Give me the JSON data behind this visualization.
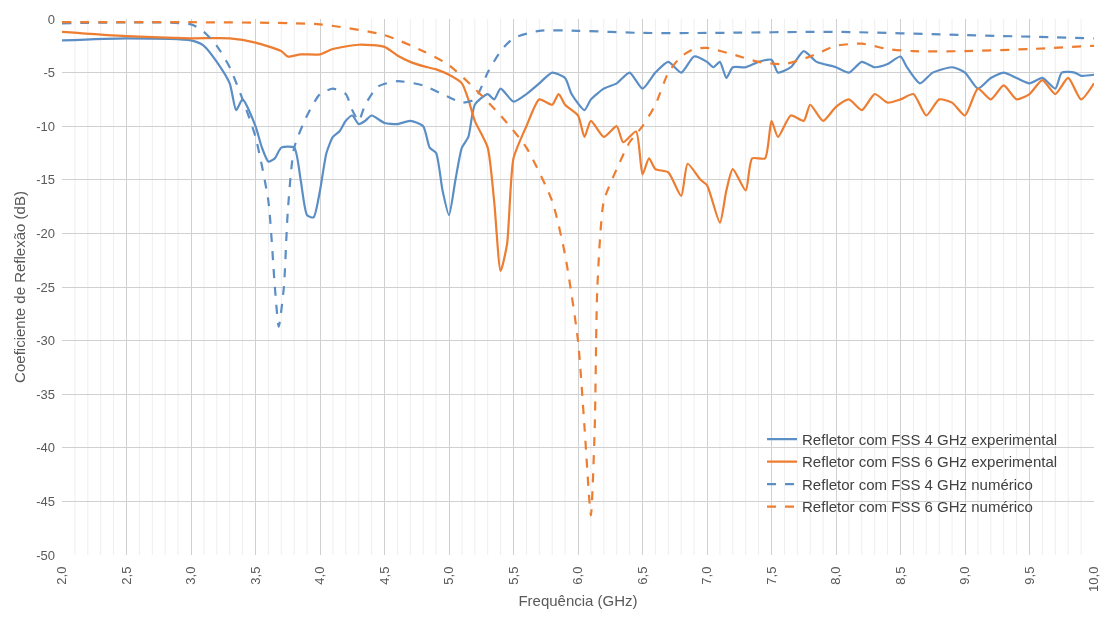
{
  "chart_data": {
    "type": "line",
    "xlabel": "Frequência (GHz)",
    "ylabel": "Coeficiente de Reflexão (dB)",
    "xlim": [
      2,
      10
    ],
    "ylim": [
      -50,
      0
    ],
    "xticks": [
      {
        "value": 2,
        "label": "2,0"
      },
      {
        "value": 2.5,
        "label": "2,5"
      },
      {
        "value": 3,
        "label": "3,0"
      },
      {
        "value": 3.5,
        "label": "3,5"
      },
      {
        "value": 4,
        "label": "4,0"
      },
      {
        "value": 4.5,
        "label": "4,5"
      },
      {
        "value": 5,
        "label": "5,0"
      },
      {
        "value": 5.5,
        "label": "5,5"
      },
      {
        "value": 6,
        "label": "6,0"
      },
      {
        "value": 6.5,
        "label": "6,5"
      },
      {
        "value": 7,
        "label": "7,0"
      },
      {
        "value": 7.5,
        "label": "7,5"
      },
      {
        "value": 8,
        "label": "8,0"
      },
      {
        "value": 8.5,
        "label": "8,5"
      },
      {
        "value": 9,
        "label": "9,0"
      },
      {
        "value": 9.5,
        "label": "9,5"
      },
      {
        "value": 10,
        "label": "10,0"
      }
    ],
    "yticks": [
      -50,
      -45,
      -40,
      -35,
      -30,
      -25,
      -20,
      -15,
      -10,
      -5,
      0
    ],
    "grid": true,
    "legend": "bottom right",
    "marker": "none",
    "series": [
      {
        "name": "Refletor com FSS 4 GHz experimental",
        "color": "#5b8ec4",
        "line_style": "solid",
        "x": [
          2.0,
          2.5,
          3.0,
          3.1,
          3.2,
          3.3,
          3.35,
          3.4,
          3.5,
          3.55,
          3.6,
          3.65,
          3.7,
          3.8,
          3.85,
          3.9,
          3.95,
          4.0,
          4.05,
          4.1,
          4.15,
          4.2,
          4.25,
          4.3,
          4.35,
          4.4,
          4.5,
          4.6,
          4.7,
          4.8,
          4.85,
          4.9,
          4.95,
          5.0,
          5.05,
          5.1,
          5.15,
          5.2,
          5.3,
          5.35,
          5.4,
          5.5,
          5.6,
          5.7,
          5.8,
          5.9,
          5.95,
          6.05,
          6.1,
          6.2,
          6.3,
          6.4,
          6.5,
          6.6,
          6.7,
          6.8,
          6.9,
          7.0,
          7.05,
          7.1,
          7.15,
          7.2,
          7.3,
          7.4,
          7.5,
          7.55,
          7.65,
          7.75,
          7.85,
          8.0,
          8.1,
          8.2,
          8.3,
          8.4,
          8.5,
          8.55,
          8.65,
          8.75,
          8.9,
          9.0,
          9.1,
          9.2,
          9.3,
          9.4,
          9.5,
          9.6,
          9.7,
          9.75,
          9.85,
          9.9,
          10.0
        ],
        "values": [
          -2,
          -1.8,
          -2,
          -2.5,
          -4,
          -6,
          -8.5,
          -7.5,
          -10,
          -12,
          -13.3,
          -13,
          -12,
          -12,
          -15,
          -18.3,
          -18.5,
          -16,
          -12.5,
          -11,
          -10.5,
          -9.5,
          -9,
          -9.8,
          -9.5,
          -9,
          -9.7,
          -9.8,
          -9.5,
          -10,
          -12,
          -12.5,
          -16,
          -18.3,
          -15,
          -12,
          -11,
          -8,
          -7,
          -7.5,
          -6.5,
          -7.7,
          -7,
          -6,
          -5,
          -5.5,
          -7,
          -8.5,
          -7.5,
          -6.5,
          -6,
          -5,
          -6.5,
          -5,
          -4,
          -5,
          -3.5,
          -4,
          -4.5,
          -4,
          -5.5,
          -4.5,
          -4.5,
          -4,
          -3.8,
          -5,
          -4.5,
          -3,
          -4,
          -4.5,
          -5,
          -4,
          -4.5,
          -4.2,
          -3.5,
          -4.5,
          -6,
          -5,
          -4.5,
          -5,
          -6.5,
          -5.5,
          -5,
          -5.5,
          -6,
          -5.5,
          -6.5,
          -5,
          -5,
          -5.3,
          -5.2
        ]
      },
      {
        "name": "Refletor com FSS 6 GHz experimental",
        "color": "#ed7d31",
        "line_style": "solid",
        "x": [
          2.0,
          2.5,
          3.0,
          3.3,
          3.5,
          3.7,
          3.75,
          3.85,
          4.0,
          4.1,
          4.3,
          4.5,
          4.6,
          4.7,
          4.8,
          4.9,
          5.0,
          5.1,
          5.15,
          5.2,
          5.3,
          5.35,
          5.4,
          5.45,
          5.5,
          5.6,
          5.7,
          5.8,
          5.85,
          5.9,
          6.0,
          6.05,
          6.1,
          6.2,
          6.3,
          6.35,
          6.45,
          6.5,
          6.55,
          6.6,
          6.7,
          6.8,
          6.85,
          6.95,
          7.0,
          7.1,
          7.15,
          7.2,
          7.3,
          7.35,
          7.45,
          7.5,
          7.55,
          7.65,
          7.75,
          7.8,
          7.9,
          8.0,
          8.1,
          8.2,
          8.3,
          8.4,
          8.5,
          8.6,
          8.7,
          8.8,
          8.9,
          9.0,
          9.1,
          9.2,
          9.3,
          9.4,
          9.5,
          9.6,
          9.7,
          9.8,
          9.9,
          10.0
        ],
        "values": [
          -1.2,
          -1.6,
          -1.8,
          -1.8,
          -2.2,
          -3,
          -3.5,
          -3.3,
          -3.3,
          -2.8,
          -2.4,
          -2.6,
          -3.4,
          -4,
          -4.4,
          -4.7,
          -5.2,
          -6,
          -7.5,
          -9.5,
          -12,
          -17,
          -23.5,
          -21,
          -13,
          -10,
          -7.5,
          -8,
          -7,
          -8,
          -9,
          -11,
          -9.5,
          -11,
          -10,
          -11.5,
          -10.5,
          -14.5,
          -13,
          -14,
          -14.3,
          -16.5,
          -13.5,
          -15,
          -15.5,
          -19,
          -16,
          -14,
          -16,
          -13,
          -13,
          -9.5,
          -11,
          -9,
          -9.5,
          -8,
          -9.5,
          -8.2,
          -7.5,
          -8.5,
          -7,
          -7.8,
          -7.5,
          -7,
          -9,
          -7.5,
          -7.8,
          -9,
          -6.5,
          -7.5,
          -6.2,
          -7.5,
          -7,
          -5.7,
          -7,
          -5.5,
          -7.5,
          -6
        ]
      },
      {
        "name": "Refletor com FSS 4 GHz numérico",
        "color": "#5b8ec4",
        "line_style": "dashed",
        "x": [
          2.0,
          3.0,
          3.1,
          3.2,
          3.3,
          3.4,
          3.5,
          3.6,
          3.65,
          3.68,
          3.72,
          3.75,
          3.8,
          3.9,
          4.0,
          4.1,
          4.2,
          4.25,
          4.3,
          4.35,
          4.45,
          4.6,
          4.8,
          5.0,
          5.1,
          5.2,
          5.3,
          5.4,
          5.5,
          5.7,
          6.0,
          6.5,
          7.0,
          8.0,
          9.0,
          10.0
        ],
        "values": [
          -0.4,
          -0.5,
          -1.2,
          -2.5,
          -4.5,
          -7.5,
          -11,
          -17,
          -25,
          -28.7,
          -25,
          -18,
          -12,
          -9,
          -7,
          -6.5,
          -7,
          -8.5,
          -9.5,
          -8,
          -6.3,
          -5.8,
          -6.2,
          -7.3,
          -7.8,
          -7.5,
          -5,
          -3,
          -1.8,
          -1.1,
          -1.1,
          -1.3,
          -1.3,
          -1.2,
          -1.5,
          -1.8
        ]
      },
      {
        "name": "Refletor com FSS 6 GHz numérico",
        "color": "#ed7d31",
        "line_style": "dashed",
        "x": [
          2.0,
          3.0,
          4.0,
          4.5,
          4.8,
          5.0,
          5.2,
          5.4,
          5.6,
          5.8,
          5.9,
          6.0,
          6.05,
          6.1,
          6.13,
          6.15,
          6.2,
          6.3,
          6.4,
          6.5,
          6.6,
          6.7,
          6.8,
          6.9,
          7.0,
          7.2,
          7.4,
          7.6,
          7.8,
          8.0,
          8.2,
          8.4,
          8.6,
          9.0,
          9.5,
          10.0
        ],
        "values": [
          -0.3,
          -0.3,
          -0.5,
          -1.5,
          -3,
          -4.3,
          -6.5,
          -9,
          -12,
          -17,
          -22,
          -30,
          -38,
          -46.3,
          -38,
          -25,
          -17,
          -14,
          -11.5,
          -10,
          -8,
          -5,
          -3.5,
          -2.8,
          -2.7,
          -3.3,
          -4,
          -4.2,
          -3.5,
          -2.5,
          -2.3,
          -2.8,
          -3,
          -3,
          -2.8,
          -2.5
        ]
      }
    ]
  }
}
